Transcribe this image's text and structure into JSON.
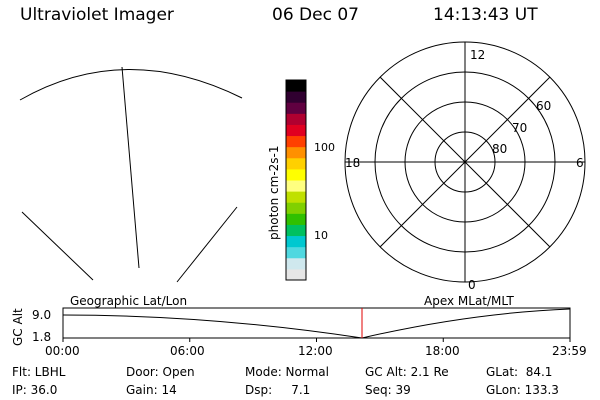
{
  "header": {
    "title": "Ultraviolet Imager",
    "date": "06 Dec 07",
    "time": "14:13:43 UT"
  },
  "colorbar": {
    "axis_label": "photon cm-2s-1",
    "ticks": [
      "100",
      "10"
    ],
    "colors": [
      "#e6e6e6",
      "#cfe8ee",
      "#50d8e0",
      "#00c8d0",
      "#00c060",
      "#30c000",
      "#80d000",
      "#c0e000",
      "#ffff80",
      "#ffff00",
      "#ffd000",
      "#ff9000",
      "#ff4000",
      "#e00020",
      "#b00030",
      "#600040",
      "#300030",
      "#000000"
    ]
  },
  "polar_plot": {
    "mlt_labels": [
      "12",
      "18",
      "6",
      "0"
    ],
    "mlat_labels": [
      "60",
      "70",
      "80"
    ]
  },
  "timeline": {
    "alt_axis_label": "GC Alt",
    "alt_ticks": [
      "9.0",
      "1.8"
    ],
    "left_label": "Geographic Lat/Lon",
    "right_label": "Apex MLat/MLT",
    "time_ticks": [
      "00:00",
      "06:00",
      "12:00",
      "18:00",
      "23:59"
    ],
    "marker_color": "#e00000"
  },
  "status": {
    "flt": "Flt: LBHL",
    "ip": "IP: 36.0",
    "door": "Door: Open",
    "gain": "Gain: 14",
    "mode": "Mode: Normal",
    "dsp": "Dsp:     7.1",
    "gc_alt": "GC Alt: 2.1 Re",
    "seq": "Seq: 39",
    "glat": "GLat:  84.1",
    "glon": "GLon: 133.3"
  }
}
